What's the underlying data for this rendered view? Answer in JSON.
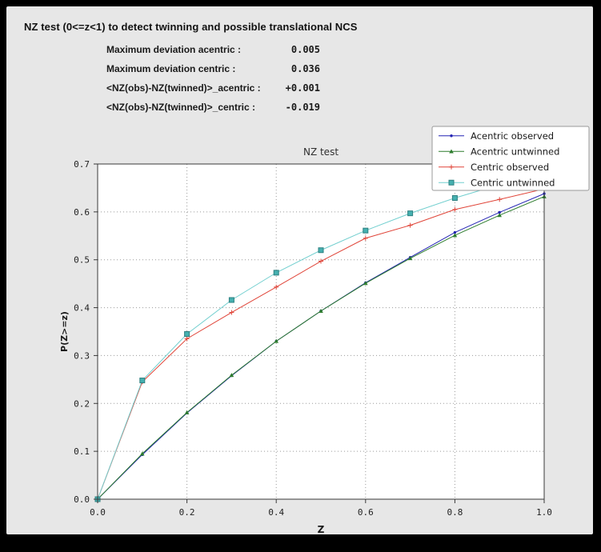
{
  "header": {
    "title": "NZ test (0<=z<1) to detect twinning and possible translational NCS"
  },
  "stats": [
    {
      "label": "Maximum deviation acentric :",
      "value": "0.005"
    },
    {
      "label": "Maximum deviation centric :",
      "value": "0.036"
    },
    {
      "label": "<NZ(obs)-NZ(twinned)>_acentric :",
      "value": "+0.001"
    },
    {
      "label": "<NZ(obs)-NZ(twinned)>_centric :",
      "value": "-0.019"
    }
  ],
  "chart_data": {
    "type": "line",
    "title": "NZ test",
    "xlabel": "Z",
    "ylabel": "P(Z>=z)",
    "xlim": [
      0.0,
      1.0
    ],
    "ylim": [
      0.0,
      0.7
    ],
    "xticks": [
      0.0,
      0.2,
      0.4,
      0.6,
      0.8,
      1.0
    ],
    "yticks": [
      0.0,
      0.1,
      0.2,
      0.3,
      0.4,
      0.5,
      0.6,
      0.7
    ],
    "grid": true,
    "legend_position": "upper right",
    "x": [
      0.0,
      0.1,
      0.2,
      0.3,
      0.4,
      0.5,
      0.6,
      0.7,
      0.8,
      0.9,
      1.0
    ],
    "series": [
      {
        "name": "Acentric observed",
        "color": "#2424b4",
        "marker": "dot",
        "values": [
          0.0,
          0.093,
          0.18,
          0.258,
          0.33,
          0.393,
          0.452,
          0.505,
          0.557,
          0.599,
          0.638
        ]
      },
      {
        "name": "Acentric untwinned",
        "color": "#2e7d2e",
        "marker": "triangle",
        "values": [
          0.0,
          0.095,
          0.181,
          0.259,
          0.33,
          0.393,
          0.451,
          0.503,
          0.551,
          0.593,
          0.632
        ]
      },
      {
        "name": "Centric observed",
        "color": "#e04438",
        "marker": "plus",
        "values": [
          0.0,
          0.245,
          0.335,
          0.39,
          0.443,
          0.497,
          0.545,
          0.572,
          0.605,
          0.626,
          0.648
        ]
      },
      {
        "name": "Centric untwinned",
        "color": "#72cfcf",
        "marker": "square",
        "marker_color": "#45b0b0",
        "marker_edge": "#2e8080",
        "values": [
          0.0,
          0.248,
          0.345,
          0.416,
          0.473,
          0.52,
          0.561,
          0.597,
          0.629,
          0.657,
          0.683
        ]
      }
    ]
  },
  "chart_colors": {
    "plot_background": "#ffffff",
    "panel_background": "#e7e7e7",
    "grid": "#9a9a9a",
    "frame": "#3a3a3a",
    "legend_border": "#999999"
  }
}
